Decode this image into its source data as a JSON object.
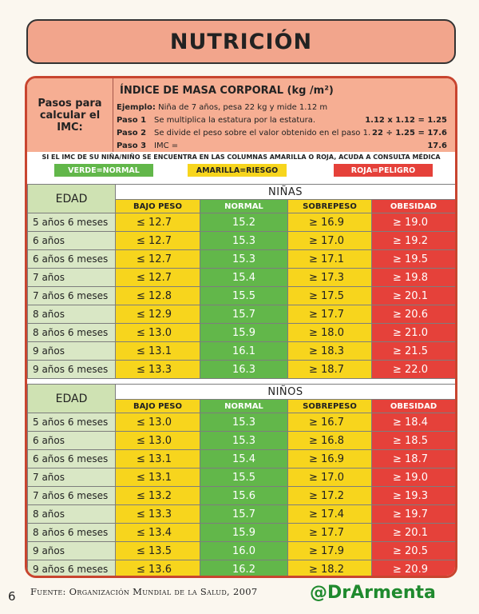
{
  "title": "NUTRICIÓN",
  "intro": {
    "left_label": "Pasos para calcular el IMC:",
    "imc_title": "ÍNDICE DE MASA CORPORAL (kg /m²)",
    "example_label": "Ejemplo:",
    "example_text": "Niña de 7 años, pesa 22 kg y mide 1.12 m",
    "step1_label": "Paso 1",
    "step1_text": "Se multiplica la estatura por la estatura.",
    "step1_value": "1.12 x 1.12 = 1.25",
    "step2_label": "Paso 2",
    "step2_text": "Se divide el peso sobre el valor obtenido en el paso 1.",
    "step2_value": "22 ÷ 1.25 = 17.6",
    "step3_label": "Paso 3",
    "step3_text": "IMC =",
    "step3_value": "17.6"
  },
  "notice": "SI EL IMC DE SU NIÑA/NIÑO SE ENCUENTRA EN LAS COLUMNAS AMARILLA O ROJA, ACUDA A CONSULTA MÉDICA",
  "legend": {
    "green": "VERDE=NORMAL",
    "yellow": "AMARILLA=RIESGO",
    "red": "ROJA=PELIGRO"
  },
  "colors": {
    "yellow": "#f7d51d",
    "green": "#62b74a",
    "red": "#e5413a",
    "title_bg": "#f2a58c",
    "frame": "#c8452f"
  },
  "columns": [
    "BAJO PESO",
    "NORMAL",
    "SOBREPESO",
    "OBESIDAD"
  ],
  "age_header": "EDAD",
  "girls": {
    "label": "NIÑAS",
    "rows": [
      {
        "age": "5 años 6 meses",
        "low": "≤ 12.7",
        "normal": "15.2",
        "over": "≥ 16.9",
        "obese": "≥ 19.0"
      },
      {
        "age": "6 años",
        "low": "≤ 12.7",
        "normal": "15.3",
        "over": "≥ 17.0",
        "obese": "≥ 19.2"
      },
      {
        "age": "6 años 6 meses",
        "low": "≤ 12.7",
        "normal": "15.3",
        "over": "≥ 17.1",
        "obese": "≥ 19.5"
      },
      {
        "age": "7 años",
        "low": "≤ 12.7",
        "normal": "15.4",
        "over": "≥ 17.3",
        "obese": "≥ 19.8"
      },
      {
        "age": "7 años 6 meses",
        "low": "≤ 12.8",
        "normal": "15.5",
        "over": "≥ 17.5",
        "obese": "≥ 20.1"
      },
      {
        "age": "8 años",
        "low": "≤ 12.9",
        "normal": "15.7",
        "over": "≥ 17.7",
        "obese": "≥ 20.6"
      },
      {
        "age": "8 años 6 meses",
        "low": "≤ 13.0",
        "normal": "15.9",
        "over": "≥ 18.0",
        "obese": "≥ 21.0"
      },
      {
        "age": "9 años",
        "low": "≤ 13.1",
        "normal": "16.1",
        "over": "≥ 18.3",
        "obese": "≥ 21.5"
      },
      {
        "age": "9 años 6 meses",
        "low": "≤ 13.3",
        "normal": "16.3",
        "over": "≥ 18.7",
        "obese": "≥ 22.0"
      }
    ]
  },
  "boys": {
    "label": "NIÑOS",
    "rows": [
      {
        "age": "5 años 6 meses",
        "low": "≤ 13.0",
        "normal": "15.3",
        "over": "≥ 16.7",
        "obese": "≥ 18.4"
      },
      {
        "age": "6 años",
        "low": "≤ 13.0",
        "normal": "15.3",
        "over": "≥ 16.8",
        "obese": "≥ 18.5"
      },
      {
        "age": "6 años 6 meses",
        "low": "≤ 13.1",
        "normal": "15.4",
        "over": "≥ 16.9",
        "obese": "≥ 18.7"
      },
      {
        "age": "7 años",
        "low": "≤ 13.1",
        "normal": "15.5",
        "over": "≥ 17.0",
        "obese": "≥ 19.0"
      },
      {
        "age": "7 años 6 meses",
        "low": "≤ 13.2",
        "normal": "15.6",
        "over": "≥ 17.2",
        "obese": "≥ 19.3"
      },
      {
        "age": "8 años",
        "low": "≤ 13.3",
        "normal": "15.7",
        "over": "≥ 17.4",
        "obese": "≥ 19.7"
      },
      {
        "age": "8 años 6 meses",
        "low": "≤ 13.4",
        "normal": "15.9",
        "over": "≥ 17.7",
        "obese": "≥ 20.1"
      },
      {
        "age": "9 años",
        "low": "≤ 13.5",
        "normal": "16.0",
        "over": "≥ 17.9",
        "obese": "≥ 20.5"
      },
      {
        "age": "9 años 6 meses",
        "low": "≤ 13.6",
        "normal": "16.2",
        "over": "≥ 18.2",
        "obese": "≥ 20.9"
      }
    ]
  },
  "footer": {
    "page_number": "6",
    "source": "Fuente: Organización Mundial de la Salud, 2007",
    "handle": "@DrArmenta"
  }
}
